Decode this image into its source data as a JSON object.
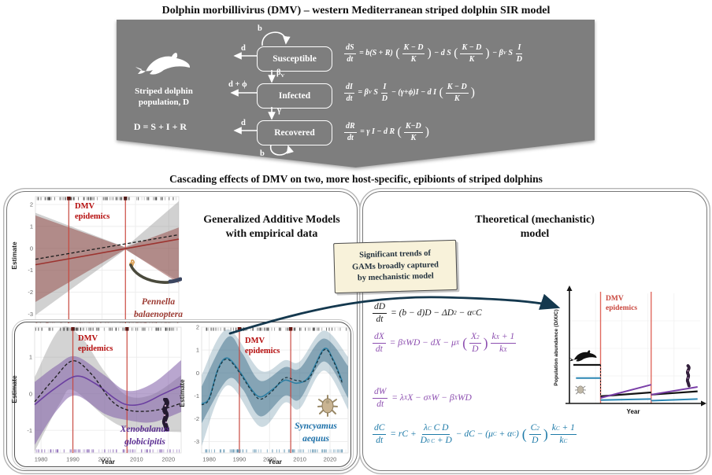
{
  "page": {
    "title": "Dolphin morbillivirus (DMV) – western Mediterranean striped dolphin SIR model",
    "section_title": "Cascading effects of DMV on two, more host-specific, epibionts of striped dolphins"
  },
  "colors": {
    "banner_gray": "#7e7e7e",
    "epidemic_line_red": "#c9463d",
    "dmv_text_red": "#b50d0d",
    "pennella_maroon": "#9c3430",
    "xenobalanus_purple": "#6b3fa0",
    "syncyamus_teal": "#2e7fa3",
    "equation_purple": "#8d4fb0",
    "equation_teal": "#1d7aa8",
    "arrow_navy": "#14384e",
    "callout_cream": "#f8f2da"
  },
  "banner": {
    "population_line1": "Striped dolphin",
    "population_line2": "population, D",
    "sum_equation": "D = S + I + R",
    "compartments": [
      "Susceptible",
      "Infected",
      "Recovered"
    ],
    "flow": {
      "b_top": "b",
      "d_s": "d",
      "beta_base": "β",
      "beta_sub": "V",
      "d_phi": "d + ϕ",
      "gamma": "γ",
      "d_r": "d",
      "b_bottom": "b"
    }
  },
  "labels": {
    "dmv_line1": "DMV",
    "dmv_line2": "epidemics",
    "estimate": "Estimate",
    "year": "Year"
  },
  "left_panel": {
    "title_line1": "Generalized Additive Models",
    "title_line2": "with empirical data",
    "pennella_name": [
      "Pennella",
      "balaenoptera"
    ],
    "xenobalanus_name": [
      "Xenobalanus",
      "globicipitis"
    ],
    "syncyamus_name": [
      "Syncyamus",
      "aequus"
    ]
  },
  "right_panel": {
    "title_line1": "Theoretical (mechanistic)",
    "title_line2": "model",
    "theory_ylabel": "Population abundance (D/X/C)"
  },
  "callout": {
    "lines": [
      "Significant trends of",
      "GAMs broadly captured",
      "by mechanistic model"
    ]
  },
  "equations": {
    "S": [
      {
        "f": [
          "dS",
          "dt"
        ]
      },
      " = b(S + R) ",
      {
        "b": "("
      },
      {
        "f": [
          "K − D",
          "K"
        ]
      },
      {
        "b": ")"
      },
      " − d S ",
      {
        "b": "("
      },
      {
        "f": [
          "K − D",
          "K"
        ]
      },
      {
        "b": ")"
      },
      " − β",
      {
        "s": "V"
      },
      " S ",
      {
        "f": [
          "I",
          "D"
        ]
      }
    ],
    "I": [
      {
        "f": [
          "dI",
          "dt"
        ]
      },
      " = β",
      {
        "s": "V"
      },
      " S ",
      {
        "f": [
          "I",
          "D"
        ]
      },
      " − (γ+ϕ)I − d I ",
      {
        "b": "("
      },
      {
        "f": [
          "K − D",
          "K"
        ]
      },
      {
        "b": ")"
      }
    ],
    "R": [
      {
        "f": [
          "dR",
          "dt"
        ]
      },
      " = γ I − d R ",
      {
        "b": "("
      },
      {
        "f": [
          "K−D",
          "K"
        ]
      },
      {
        "b": ")"
      }
    ],
    "D": [
      {
        "f": [
          "dD",
          "dt"
        ]
      },
      " = (b − d)D − ΔD",
      {
        "p": "2"
      },
      " − α",
      {
        "s": "C"
      },
      "C"
    ],
    "X": [
      {
        "f": [
          "dX",
          "dt"
        ]
      },
      " = β",
      {
        "s": "X"
      },
      "WD − dX − μ",
      {
        "s": "X"
      },
      " ",
      {
        "b": "("
      },
      {
        "f": [
          [
            "X",
            {
              "p": "2"
            }
          ],
          "D"
        ]
      },
      {
        "b": ")"
      },
      {
        "f": [
          [
            "k",
            {
              "s": "X"
            },
            " + 1"
          ],
          [
            "k",
            {
              "s": "X"
            }
          ]
        ]
      }
    ],
    "W": [
      {
        "f": [
          "dW",
          "dt"
        ]
      },
      " = λ",
      {
        "s": "X"
      },
      "X − σ",
      {
        "s": "X"
      },
      "W − β",
      {
        "s": "X"
      },
      "WD"
    ],
    "C": [
      {
        "f": [
          "dC",
          "dt"
        ]
      },
      " = rC + ",
      {
        "f": [
          [
            "λ",
            {
              "s": "C"
            },
            " C D"
          ],
          [
            "D",
            {
              "s": "0 C"
            },
            " + D"
          ]
        ]
      },
      " − dC − (μ",
      {
        "s": "C"
      },
      " + α",
      {
        "s": "C"
      },
      ") ",
      {
        "b": "("
      },
      {
        "f": [
          [
            "C",
            {
              "p": "2"
            }
          ],
          "D"
        ]
      },
      {
        "b": ")"
      },
      {
        "f": [
          [
            "k",
            {
              "s": "C"
            },
            " + 1"
          ],
          [
            "k",
            {
              "s": "C"
            }
          ]
        ]
      }
    ]
  },
  "chart_data": {
    "pennella": {
      "type": "gam",
      "ylabel": "Estimate",
      "x_range": [
        1980,
        2023
      ],
      "y_range": [
        -3.42,
        2.36
      ],
      "y_ticks": [
        2,
        1,
        0,
        -1,
        -2,
        -3
      ],
      "x_ticks": [],
      "grid_x": [
        1990,
        2000,
        2010,
        2020
      ],
      "epidemic_years": [
        1990,
        2007
      ],
      "bands": [
        {
          "color": "rgba(145,145,145,0.42)",
          "smooth": false,
          "upper": [
            [
              1980,
              1.62
            ],
            [
              2007,
              0.05
            ],
            [
              2023,
              2.15
            ]
          ],
          "lower": [
            [
              1980,
              -3.05
            ],
            [
              2007,
              -0.06
            ],
            [
              2023,
              -1.5
            ]
          ]
        },
        {
          "color": "rgba(148,74,70,0.52)",
          "smooth": false,
          "upper": [
            [
              1980,
              1.5
            ],
            [
              2007,
              0.04
            ],
            [
              2023,
              0.95
            ]
          ],
          "lower": [
            [
              1980,
              -2.45
            ],
            [
              2007,
              -0.04
            ],
            [
              2023,
              -1.6
            ]
          ]
        }
      ],
      "lines": [
        {
          "color": "#9c3430",
          "width": 1.6,
          "smooth": false,
          "points": [
            [
              1980,
              -0.75
            ],
            [
              2023,
              0.42
            ]
          ]
        },
        {
          "color": "#1c1c1c",
          "width": 1.3,
          "dash": "4 2.6",
          "smooth": false,
          "points": [
            [
              1980,
              -0.5
            ],
            [
              2023,
              0.62
            ]
          ]
        }
      ],
      "rug": {
        "top": "#2f2f2f",
        "bottom": "#a5413c",
        "seed": 11
      }
    },
    "xenobalanus": {
      "type": "gam",
      "ylabel": "Estimate",
      "x_range": [
        1978,
        2024
      ],
      "y_range": [
        -1.62,
        1.82
      ],
      "y_ticks": [
        1,
        0,
        -1
      ],
      "x_ticks": [
        1980,
        1990,
        2000,
        2010,
        2020
      ],
      "epidemic_years": [
        1990,
        2007
      ],
      "bands": [
        {
          "color": "rgba(150,150,150,0.42)",
          "smooth": true,
          "upper": [
            [
              1978,
              0.45
            ],
            [
              1986,
              1.78
            ],
            [
              1993,
              1.5
            ],
            [
              2000,
              0.6
            ],
            [
              2007,
              -0.05
            ],
            [
              2015,
              -0.02
            ],
            [
              2024,
              0.5
            ]
          ],
          "lower": [
            [
              1978,
              -1.58
            ],
            [
              1986,
              -0.25
            ],
            [
              1990,
              0.1
            ],
            [
              2000,
              -0.62
            ],
            [
              2007,
              -0.95
            ],
            [
              2015,
              -1.02
            ],
            [
              2024,
              -1.05
            ]
          ]
        },
        {
          "color": "rgba(128,92,168,0.55)",
          "smooth": true,
          "upper": [
            [
              1978,
              0.32
            ],
            [
              1985,
              0.78
            ],
            [
              1991,
              1.02
            ],
            [
              2000,
              0.5
            ],
            [
              2007,
              0.08
            ],
            [
              2015,
              0.28
            ],
            [
              2024,
              0.92
            ]
          ],
          "lower": [
            [
              1978,
              -1.4
            ],
            [
              1985,
              -0.45
            ],
            [
              1991,
              -0.05
            ],
            [
              2000,
              -0.55
            ],
            [
              2007,
              -0.72
            ],
            [
              2015,
              -0.78
            ],
            [
              2024,
              -0.5
            ]
          ]
        }
      ],
      "lines": [
        {
          "color": "#6b3fa0",
          "width": 1.6,
          "smooth": true,
          "points": [
            [
              1978,
              -0.3
            ],
            [
              1984,
              0.12
            ],
            [
              1991,
              0.48
            ],
            [
              1997,
              0.28
            ],
            [
              2003,
              -0.12
            ],
            [
              2007,
              -0.3
            ],
            [
              2012,
              -0.27
            ],
            [
              2018,
              -0.02
            ],
            [
              2024,
              0.22
            ]
          ]
        },
        {
          "color": "#1c1c1c",
          "width": 1.3,
          "dash": "4 2.6",
          "smooth": true,
          "points": [
            [
              1978,
              -0.22
            ],
            [
              1984,
              0.4
            ],
            [
              1990,
              0.9
            ],
            [
              1996,
              0.52
            ],
            [
              2002,
              -0.18
            ],
            [
              2007,
              -0.44
            ],
            [
              2013,
              -0.48
            ],
            [
              2019,
              -0.4
            ],
            [
              2024,
              -0.26
            ]
          ]
        }
      ],
      "rug": {
        "top": "#2f2f2f",
        "bottom": "#7d57ae",
        "seed": 23
      }
    },
    "syncyamus": {
      "type": "gam",
      "ylabel": "Estimate",
      "x_range": [
        1977.5,
        2026
      ],
      "y_range": [
        -3.5,
        2.0
      ],
      "y_ticks": [
        2,
        1,
        0,
        -1,
        -2,
        -3
      ],
      "x_ticks": [
        1980,
        1990,
        2000,
        2010,
        2020
      ],
      "epidemic_years": [
        1990,
        2007
      ],
      "bands": [
        {
          "color": "rgba(110,150,170,0.35)",
          "smooth": true,
          "upper": [
            [
              1977.5,
              -0.1
            ],
            [
              1986,
              1.9
            ],
            [
              1997,
              0.1
            ],
            [
              2005,
              0.55
            ],
            [
              2010,
              0.5
            ],
            [
              2018,
              1.85
            ],
            [
              2026,
              0.7
            ]
          ],
          "lower": [
            [
              1977.5,
              -3.2
            ],
            [
              1986,
              -0.55
            ],
            [
              1997,
              -2.35
            ],
            [
              2005,
              -1.3
            ],
            [
              2010,
              -1.55
            ],
            [
              2018,
              0.1
            ],
            [
              2026,
              -1.6
            ]
          ]
        },
        {
          "color": "rgba(62,110,138,0.5)",
          "smooth": true,
          "upper": [
            [
              1977.5,
              -0.6
            ],
            [
              1986,
              1.55
            ],
            [
              1991,
              0.85
            ],
            [
              1997,
              -0.35
            ],
            [
              2005,
              0.25
            ],
            [
              2010,
              0.2
            ],
            [
              2018,
              1.5
            ],
            [
              2026,
              0.3
            ]
          ],
          "lower": [
            [
              1977.5,
              -2.2
            ],
            [
              1986,
              -0.3
            ],
            [
              1991,
              -0.7
            ],
            [
              1997,
              -1.9
            ],
            [
              2005,
              -1.0
            ],
            [
              2010,
              -1.15
            ],
            [
              2018,
              0.5
            ],
            [
              2026,
              -1.1
            ]
          ]
        }
      ],
      "lines": [
        {
          "color": "#2e7fa3",
          "width": 1.6,
          "smooth": true,
          "points": [
            [
              1977.5,
              -1.35
            ],
            [
              1980,
              -1.1
            ],
            [
              1983,
              0.2
            ],
            [
              1986,
              0.65
            ],
            [
              1990,
              0.08
            ],
            [
              1994,
              -0.72
            ],
            [
              1997,
              -1.05
            ],
            [
              2001,
              -0.72
            ],
            [
              2005,
              -0.32
            ],
            [
              2009,
              -0.45
            ],
            [
              2013,
              -0.18
            ],
            [
              2018,
              1.05
            ],
            [
              2021,
              0.6
            ],
            [
              2024,
              -0.35
            ]
          ]
        },
        {
          "color": "#16303a",
          "width": 1.2,
          "dash": "3.4 2.6",
          "smooth": true,
          "points": [
            [
              1977.5,
              -1.4
            ],
            [
              1980,
              -1.15
            ],
            [
              1983,
              0.15
            ],
            [
              1986,
              0.6
            ],
            [
              1990,
              0.02
            ],
            [
              1994,
              -0.78
            ],
            [
              1997,
              -1.15
            ],
            [
              2001,
              -0.78
            ],
            [
              2005,
              -0.22
            ],
            [
              2009,
              -0.33
            ],
            [
              2013,
              -0.25
            ],
            [
              2018,
              1.0
            ],
            [
              2021,
              0.55
            ],
            [
              2024,
              -0.42
            ]
          ]
        }
      ],
      "rug": {
        "top": "#2f2f2f",
        "bottom": "#4e87a8",
        "seed": 37
      }
    },
    "theoretical": {
      "type": "mini",
      "ylabel": "Population abundance (D/X/C)",
      "xlabel": "Year",
      "epidemic_x_pct": [
        23.8,
        62.5
      ],
      "drop": {
        "x_pct": 23.8,
        "from": 35,
        "to": 6.5
      },
      "series": [
        {
          "name": "dolphin-D",
          "color": "#141414",
          "width": 2.2,
          "segments": [
            [
              [
                3,
                35
              ],
              [
                23.8,
                35
              ]
            ],
            [
              [
                23.8,
                6.5
              ],
              [
                62.5,
                10
              ]
            ],
            [
              [
                62.5,
                8
              ],
              [
                98,
                11
              ]
            ]
          ]
        },
        {
          "name": "syncyamus-C",
          "color": "#2b86b4",
          "width": 2.0,
          "segments": [
            [
              [
                5,
                23
              ],
              [
                23.8,
                23
              ]
            ],
            [
              [
                23.8,
                3
              ],
              [
                62.5,
                4
              ]
            ],
            [
              [
                62.5,
                2.5
              ],
              [
                98,
                4
              ]
            ]
          ]
        },
        {
          "name": "xenobalanus-X",
          "color": "#7a3fa8",
          "width": 2.0,
          "segments": [
            [
              [
                23.8,
                5
              ],
              [
                62.5,
                17
              ]
            ],
            [
              [
                62.5,
                8
              ],
              [
                98,
                15
              ]
            ]
          ]
        }
      ]
    }
  }
}
